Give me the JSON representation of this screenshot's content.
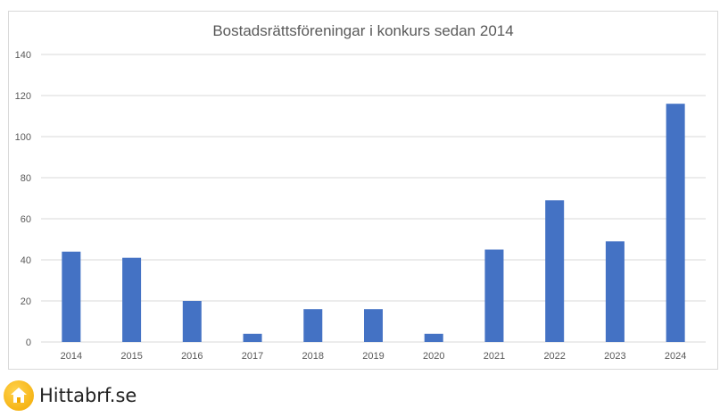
{
  "chart_data": {
    "type": "bar",
    "title": "Bostadsrättsföreningar i konkurs sedan 2014",
    "categories": [
      "2014",
      "2015",
      "2016",
      "2017",
      "2018",
      "2019",
      "2020",
      "2021",
      "2022",
      "2023",
      "2024"
    ],
    "values": [
      44,
      41,
      20,
      4,
      16,
      16,
      4,
      45,
      69,
      49,
      116
    ],
    "xlabel": "",
    "ylabel": "",
    "ylim": [
      0,
      140
    ],
    "yticks": [
      "0",
      "20",
      "40",
      "60",
      "80",
      "100",
      "120",
      "140"
    ],
    "grid": true,
    "legend": false,
    "bar_color": "#4472c4"
  },
  "brand": {
    "name": "Hittabrf.se",
    "logo_icon": "house-icon"
  }
}
